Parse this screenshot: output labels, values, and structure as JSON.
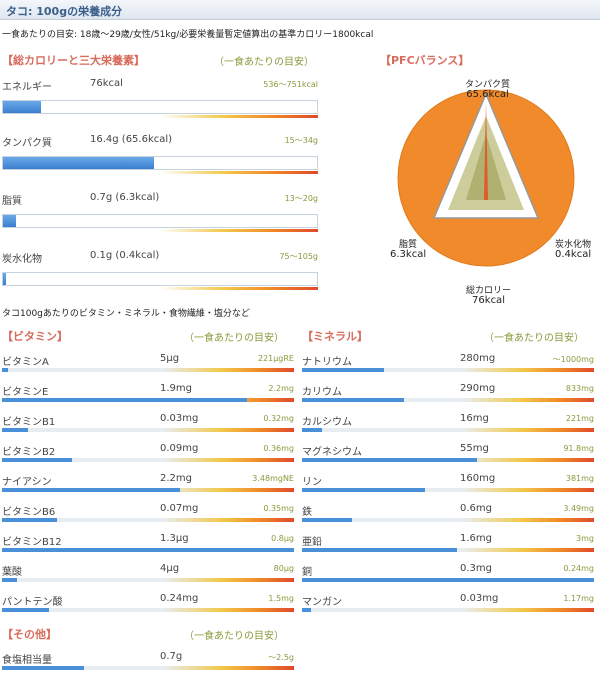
{
  "header": {
    "title": "タコ: 100gの栄養成分"
  },
  "target_text": "一食あたりの目安: 18歳～29歳/女性/51kg/必要栄養量暫定値算出の基準カロリー1800kcal",
  "calorie_section": {
    "heading": "【総カロリーと三大栄養素】",
    "sub": "（一食あたりの目安）",
    "rows": [
      {
        "name": "エネルギー",
        "value": "76kcal",
        "range": "536～751kcal",
        "fraction": 0.12
      },
      {
        "name": "タンパク質",
        "value": "16.4g (65.6kcal)",
        "range": "15～34g",
        "fraction": 0.48
      },
      {
        "name": "脂質",
        "value": "0.7g (6.3kcal)",
        "range": "13～20g",
        "fraction": 0.04
      },
      {
        "name": "炭水化物",
        "value": "0.1g (0.4kcal)",
        "range": "75～105g",
        "fraction": 0.01
      }
    ]
  },
  "pfc": {
    "heading": "【PFCバランス】",
    "protein_label": "タンパク質",
    "protein_value": "65.6kcal",
    "fat_label": "脂質",
    "fat_value": "6.3kcal",
    "carb_label": "炭水化物",
    "carb_value": "0.4kcal",
    "total_label": "総カロリー",
    "total_value": "76kcal",
    "circle_color": "#f08a2a",
    "triangle_color": "#c8c890"
  },
  "detail_line": "タコ100gあたりのビタミン・ミネラル・食物繊維・塩分など",
  "vitamin_section": {
    "heading": "【ビタミン】",
    "sub": "（一食あたりの目安）",
    "rows": [
      {
        "name": "ビタミンA",
        "value": "5μg",
        "range": "221μgRE",
        "fraction": 0.02
      },
      {
        "name": "ビタミンE",
        "value": "1.9mg",
        "range": "2.2mg",
        "fraction": 0.84
      },
      {
        "name": "ビタミンB1",
        "value": "0.03mg",
        "range": "0.32mg",
        "fraction": 0.09
      },
      {
        "name": "ビタミンB2",
        "value": "0.09mg",
        "range": "0.36mg",
        "fraction": 0.24
      },
      {
        "name": "ナイアシン",
        "value": "2.2mg",
        "range": "3.48mgNE",
        "fraction": 0.61
      },
      {
        "name": "ビタミンB6",
        "value": "0.07mg",
        "range": "0.35mg",
        "fraction": 0.19
      },
      {
        "name": "ビタミンB12",
        "value": "1.3μg",
        "range": "0.8μg",
        "fraction": 1.0
      },
      {
        "name": "葉酸",
        "value": "4μg",
        "range": "80μg",
        "fraction": 0.05
      },
      {
        "name": "パントテン酸",
        "value": "0.24mg",
        "range": "1.5mg",
        "fraction": 0.16
      }
    ]
  },
  "mineral_section": {
    "heading": "【ミネラル】",
    "sub": "（一食あたりの目安）",
    "rows": [
      {
        "name": "ナトリウム",
        "value": "280mg",
        "range": "～1000mg",
        "fraction": 0.28
      },
      {
        "name": "カリウム",
        "value": "290mg",
        "range": "833mg",
        "fraction": 0.35
      },
      {
        "name": "カルシウム",
        "value": "16mg",
        "range": "221mg",
        "fraction": 0.07
      },
      {
        "name": "マグネシウム",
        "value": "55mg",
        "range": "91.8mg",
        "fraction": 0.6
      },
      {
        "name": "リン",
        "value": "160mg",
        "range": "381mg",
        "fraction": 0.42
      },
      {
        "name": "鉄",
        "value": "0.6mg",
        "range": "3.49mg",
        "fraction": 0.17
      },
      {
        "name": "亜鉛",
        "value": "1.6mg",
        "range": "3mg",
        "fraction": 0.53
      },
      {
        "name": "銅",
        "value": "0.3mg",
        "range": "0.24mg",
        "fraction": 1.0
      },
      {
        "name": "マンガン",
        "value": "0.03mg",
        "range": "1.17mg",
        "fraction": 0.03
      }
    ]
  },
  "other_section": {
    "heading": "【その他】",
    "sub": "（一食あたりの目安）",
    "rows": [
      {
        "name": "食塩相当量",
        "value": "0.7g",
        "range": "～2.5g",
        "fraction": 0.28
      }
    ]
  }
}
